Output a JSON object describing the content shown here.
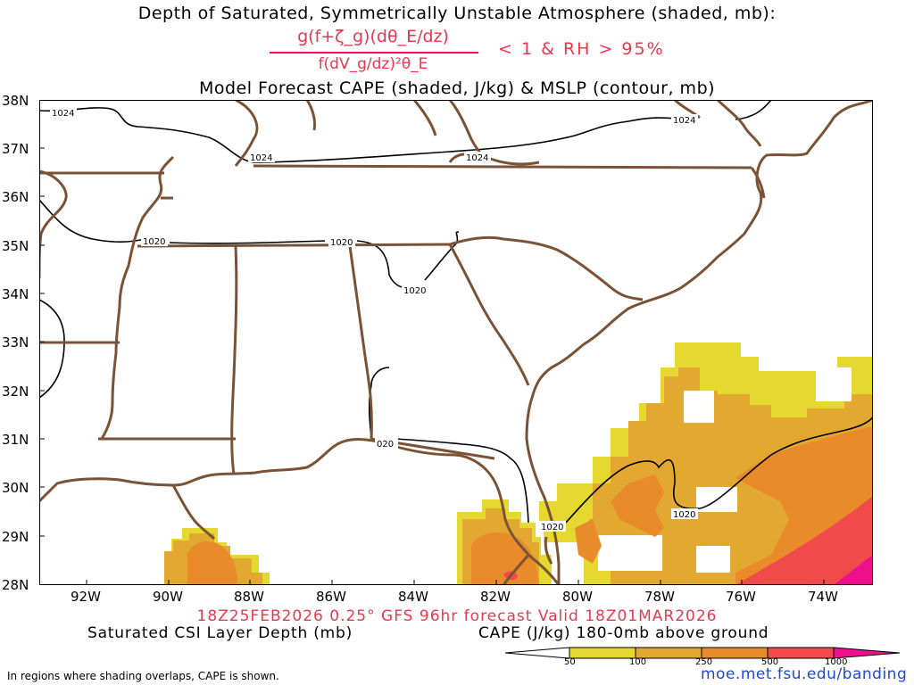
{
  "titles": {
    "line1": "Depth of Saturated, Symmetrically Unstable Atmosphere (shaded, mb):",
    "formula_numerator": "g(f+ζ_g)(dθ_E/dz)",
    "formula_denominator": "f(dV_g/dz)²θ_E",
    "formula_condition": "< 1 & RH > 95%",
    "line2": "Model Forecast CAPE (shaded, J/kg) & MSLP (contour, mb)"
  },
  "map": {
    "region": "Southeastern United States",
    "lat_labels": [
      "38N",
      "37N",
      "36N",
      "35N",
      "34N",
      "33N",
      "32N",
      "31N",
      "30N",
      "29N",
      "28N"
    ],
    "lon_labels": [
      "92W",
      "90W",
      "88W",
      "86W",
      "84W",
      "82W",
      "80W",
      "78W",
      "76W",
      "74W"
    ],
    "contour_labels": [
      "1024",
      "1024",
      "1024",
      "1024",
      "1020",
      "1020",
      "1020",
      "020",
      "1020",
      "1020"
    ],
    "colors": {
      "border": "#7a5236",
      "contour": "#000000",
      "cape_50": "#e5d830",
      "cape_100": "#e3a830",
      "cape_250": "#e98a2b",
      "cape_500": "#ef4b4b",
      "cape_1000": "#ee0f8c"
    }
  },
  "footer": {
    "valid": "18Z25FEB2026 0.25° GFS 96hr forecast Valid 18Z01MAR2026",
    "left_label": "Saturated CSI Layer Depth (mb)",
    "right_label": "CAPE (J/kg) 180-0mb above ground",
    "note": "In regions where shading overlaps, CAPE is shown.",
    "url": "moe.met.fsu.edu/banding"
  },
  "colorbar": {
    "ticks": [
      "50",
      "100",
      "250",
      "500",
      "1000"
    ],
    "colors": [
      "#ffffff",
      "#e5d830",
      "#e3a830",
      "#e98a2b",
      "#ef4b4b",
      "#ee0f8c"
    ]
  }
}
